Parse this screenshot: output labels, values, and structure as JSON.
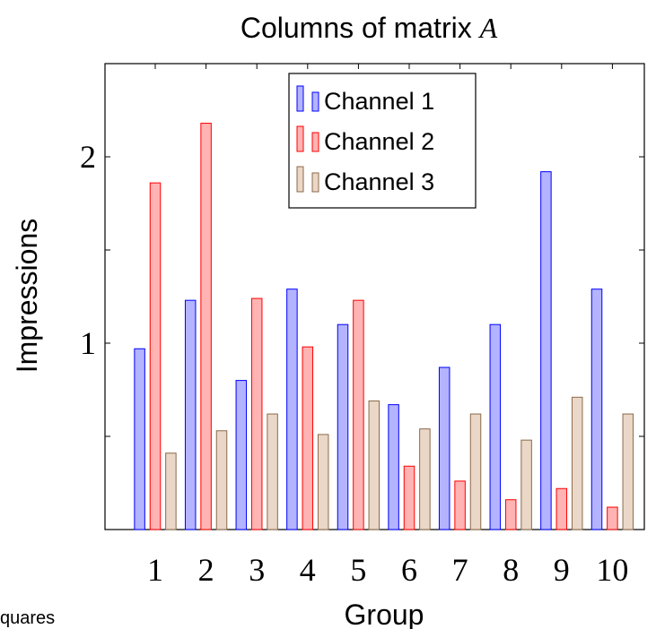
{
  "footer_text": "quares",
  "chart_data": {
    "type": "bar",
    "title": "Columns of matrix",
    "title_variable": "A",
    "xlabel": "Group",
    "ylabel": "Impressions",
    "categories": [
      "1",
      "2",
      "3",
      "4",
      "5",
      "6",
      "7",
      "8",
      "9",
      "10"
    ],
    "y_tick_labels": [
      "1",
      "2"
    ],
    "y_tick_values": [
      1,
      2
    ],
    "ylim": [
      0,
      2.5
    ],
    "grid": false,
    "legend_position": "top-center",
    "series": [
      {
        "name": "Channel 1",
        "color": "#b3b3ff",
        "stroke": "#0000ff",
        "values": [
          0.97,
          1.23,
          0.8,
          1.29,
          1.1,
          0.67,
          0.87,
          1.1,
          1.92,
          1.29
        ]
      },
      {
        "name": "Channel 2",
        "color": "#ffb3b3",
        "stroke": "#ff0000",
        "values": [
          1.86,
          2.18,
          1.24,
          0.98,
          1.23,
          0.34,
          0.26,
          0.16,
          0.22,
          0.12
        ]
      },
      {
        "name": "Channel 3",
        "color": "#ead7c7",
        "stroke": "#8b6a4a",
        "values": [
          0.41,
          0.53,
          0.62,
          0.51,
          0.69,
          0.54,
          0.62,
          0.48,
          0.71,
          0.62
        ]
      }
    ]
  }
}
